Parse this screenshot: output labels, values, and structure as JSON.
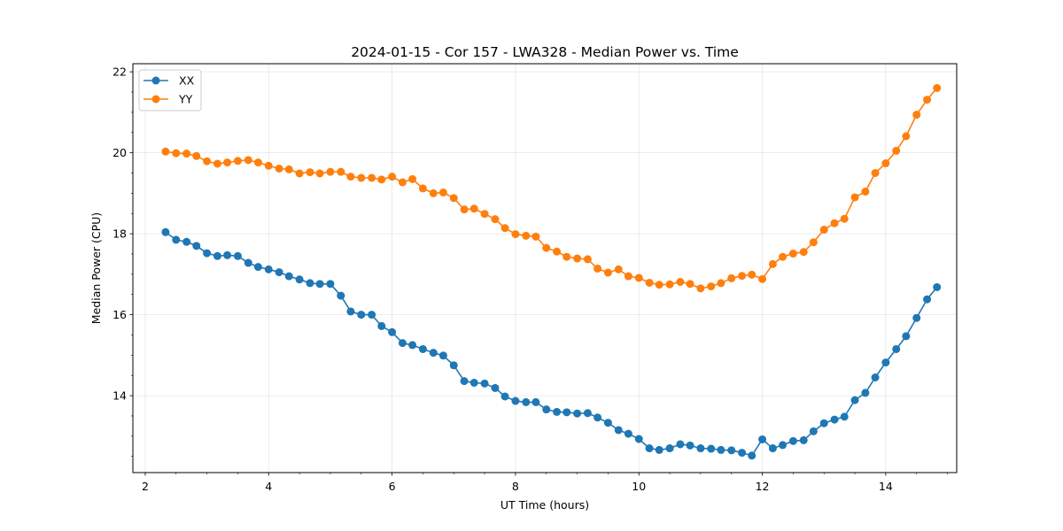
{
  "chart_data": {
    "type": "line",
    "title": "2024-01-15 - Cor 157 - LWA328 - Median Power vs. Time",
    "xlabel": "UT Time (hours)",
    "ylabel": "Median Power (CPU)",
    "xlim": [
      1.8,
      15.15
    ],
    "ylim": [
      12.1,
      22.2
    ],
    "xticks": [
      2,
      4,
      6,
      8,
      10,
      12,
      14
    ],
    "xtick_labels": [
      "2",
      "4",
      "6",
      "8",
      "10",
      "12",
      "14"
    ],
    "yticks": [
      14,
      16,
      18,
      20,
      22
    ],
    "ytick_labels": [
      "14",
      "16",
      "18",
      "20",
      "22"
    ],
    "grid": true,
    "legend_position": "top-left",
    "x": [
      2.33,
      2.5,
      2.67,
      2.83,
      3.0,
      3.17,
      3.33,
      3.5,
      3.67,
      3.83,
      4.0,
      4.17,
      4.33,
      4.5,
      4.67,
      4.83,
      5.0,
      5.17,
      5.33,
      5.5,
      5.67,
      5.83,
      6.0,
      6.17,
      6.33,
      6.5,
      6.67,
      6.83,
      7.0,
      7.17,
      7.33,
      7.5,
      7.67,
      7.83,
      8.0,
      8.17,
      8.33,
      8.5,
      8.67,
      8.83,
      9.0,
      9.17,
      9.33,
      9.5,
      9.67,
      9.83,
      10.0,
      10.17,
      10.33,
      10.5,
      10.67,
      10.83,
      11.0,
      11.17,
      11.33,
      11.5,
      11.67,
      11.83,
      12.0,
      12.17,
      12.33,
      12.5,
      12.67,
      12.83,
      13.0,
      13.17,
      13.33,
      13.5,
      13.67,
      13.83,
      14.0,
      14.17,
      14.33,
      14.5,
      14.67,
      14.83
    ],
    "series": [
      {
        "name": "XX",
        "color": "#1f77b4",
        "values": [
          18.04,
          17.85,
          17.8,
          17.7,
          17.52,
          17.45,
          17.47,
          17.45,
          17.28,
          17.18,
          17.12,
          17.05,
          16.95,
          16.87,
          16.78,
          16.76,
          16.76,
          16.47,
          16.08,
          16.0,
          16.0,
          15.72,
          15.57,
          15.3,
          15.25,
          15.15,
          15.06,
          14.99,
          14.75,
          14.36,
          14.32,
          14.3,
          14.19,
          13.98,
          13.87,
          13.84,
          13.84,
          13.66,
          13.6,
          13.59,
          13.56,
          13.57,
          13.46,
          13.33,
          13.15,
          13.06,
          12.93,
          12.7,
          12.66,
          12.7,
          12.8,
          12.77,
          12.7,
          12.69,
          12.66,
          12.65,
          12.59,
          12.52,
          12.92,
          12.7,
          12.78,
          12.88,
          12.9,
          13.12,
          13.32,
          13.41,
          13.48,
          13.89,
          14.07,
          14.45,
          14.82,
          15.15,
          15.47,
          15.92,
          16.38,
          16.68
        ]
      },
      {
        "name": "YY",
        "color": "#ff7f0e",
        "values": [
          20.03,
          19.99,
          19.98,
          19.92,
          19.79,
          19.73,
          19.76,
          19.8,
          19.82,
          19.76,
          19.68,
          19.61,
          19.59,
          19.49,
          19.52,
          19.49,
          19.53,
          19.53,
          19.41,
          19.38,
          19.38,
          19.34,
          19.41,
          19.27,
          19.35,
          19.12,
          19.0,
          19.02,
          18.88,
          18.6,
          18.62,
          18.49,
          18.36,
          18.14,
          17.99,
          17.95,
          17.93,
          17.65,
          17.56,
          17.43,
          17.39,
          17.37,
          17.14,
          17.04,
          17.12,
          16.95,
          16.91,
          16.79,
          16.74,
          16.75,
          16.81,
          16.76,
          16.65,
          16.7,
          16.78,
          16.9,
          16.96,
          16.99,
          16.88,
          17.25,
          17.43,
          17.51,
          17.55,
          17.79,
          18.1,
          18.26,
          18.37,
          18.9,
          19.04,
          19.5,
          19.74,
          20.05,
          20.41,
          20.94,
          21.31,
          21.6
        ]
      }
    ]
  }
}
